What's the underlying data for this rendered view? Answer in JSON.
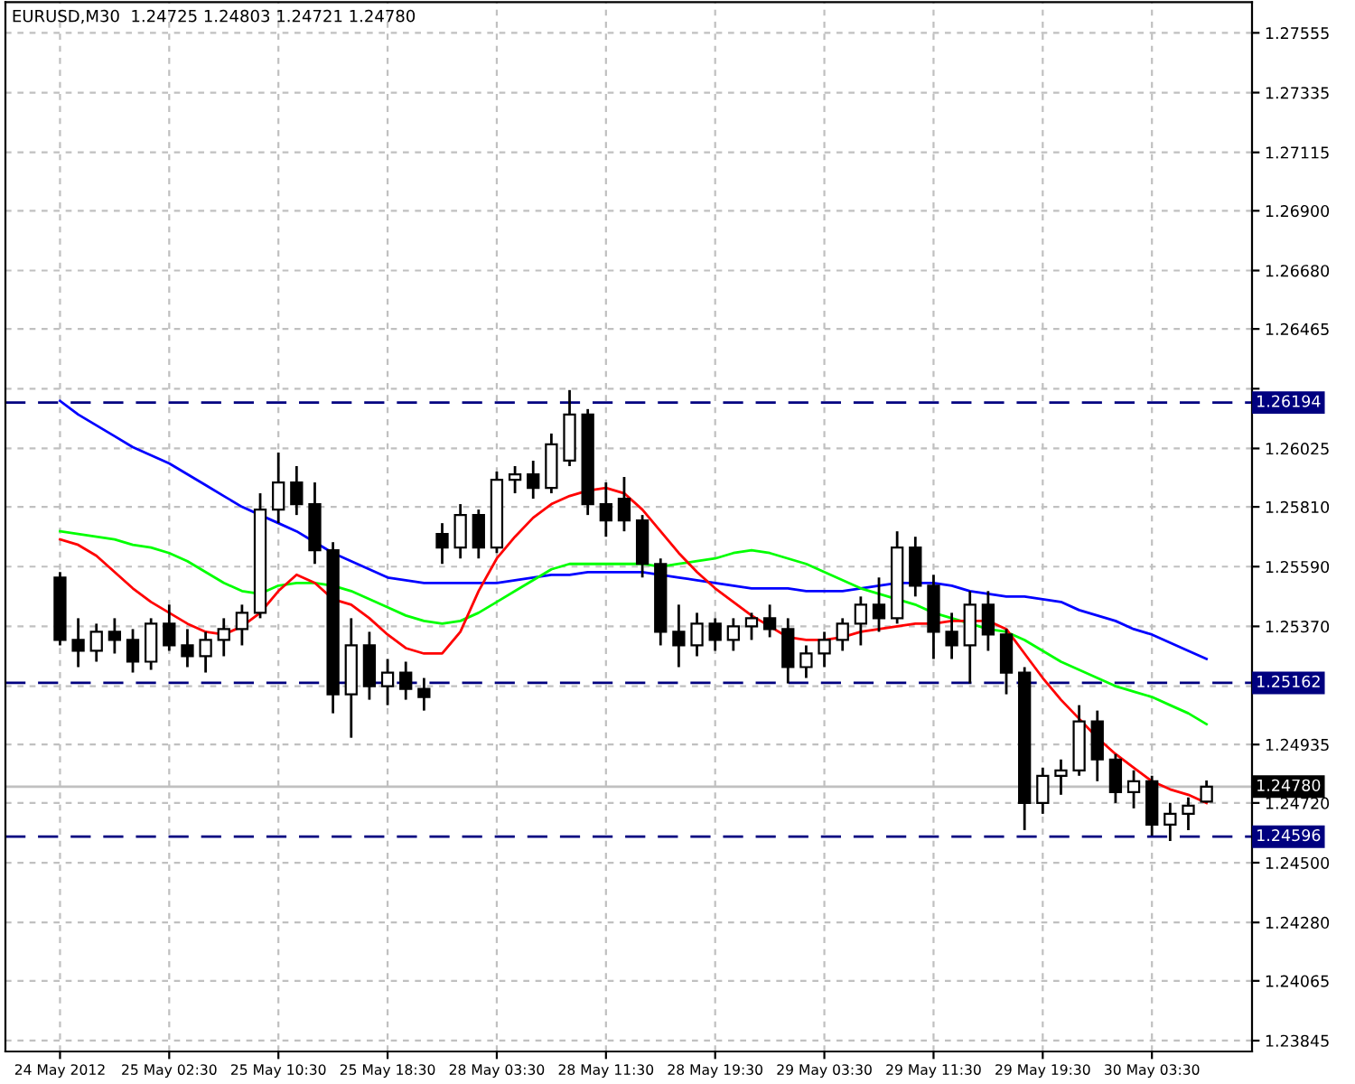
{
  "chart_data": {
    "type": "candlestick",
    "title": "EURUSD,M30  1.24725 1.24803 1.24721 1.24780",
    "categories": [
      "24 May 2012",
      null,
      null,
      null,
      null,
      null,
      "25 May 02:30",
      null,
      null,
      null,
      null,
      null,
      "25 May 10:30",
      null,
      null,
      null,
      null,
      null,
      "25 May 18:30",
      null,
      null,
      null,
      null,
      null,
      "28 May 03:30",
      null,
      null,
      null,
      null,
      null,
      "28 May 11:30",
      null,
      null,
      null,
      null,
      null,
      "28 May 19:30",
      null,
      null,
      null,
      null,
      null,
      "29 May 03:30",
      null,
      null,
      null,
      null,
      null,
      "29 May 11:30",
      null,
      null,
      null,
      null,
      null,
      "29 May 19:30",
      null,
      null,
      null,
      null,
      null,
      "30 May 03:30",
      null,
      null,
      null
    ],
    "ohlc": [
      [
        1.2555,
        1.2557,
        1.253,
        1.2532
      ],
      [
        1.2532,
        1.254,
        1.2522,
        1.2528
      ],
      [
        1.2528,
        1.2538,
        1.2524,
        1.2535
      ],
      [
        1.2535,
        1.254,
        1.2527,
        1.2532
      ],
      [
        1.2532,
        1.2536,
        1.252,
        1.2524
      ],
      [
        1.2524,
        1.254,
        1.2521,
        1.2538
      ],
      [
        1.2538,
        1.2545,
        1.2528,
        1.253
      ],
      [
        1.253,
        1.2536,
        1.2522,
        1.2526
      ],
      [
        1.2526,
        1.2535,
        1.252,
        1.2532
      ],
      [
        1.2532,
        1.254,
        1.2526,
        1.2536
      ],
      [
        1.2536,
        1.2545,
        1.253,
        1.2542
      ],
      [
        1.2542,
        1.2586,
        1.254,
        1.258
      ],
      [
        1.258,
        1.2601,
        1.2575,
        1.259
      ],
      [
        1.259,
        1.2596,
        1.2578,
        1.2582
      ],
      [
        1.2582,
        1.259,
        1.256,
        1.2565
      ],
      [
        1.2565,
        1.2568,
        1.2505,
        1.2512
      ],
      [
        1.2512,
        1.254,
        1.2496,
        1.253
      ],
      [
        1.253,
        1.2535,
        1.251,
        1.2515
      ],
      [
        1.2515,
        1.2525,
        1.2508,
        1.252
      ],
      [
        1.252,
        1.2524,
        1.251,
        1.2514
      ],
      [
        1.2514,
        1.2518,
        1.2506,
        1.2511
      ],
      [
        1.2571,
        1.2575,
        1.256,
        1.2566
      ],
      [
        1.2566,
        1.2582,
        1.2562,
        1.2578
      ],
      [
        1.2578,
        1.258,
        1.2562,
        1.2566
      ],
      [
        1.2566,
        1.2594,
        1.2564,
        1.2591
      ],
      [
        1.2591,
        1.2596,
        1.2586,
        1.2593
      ],
      [
        1.2593,
        1.2598,
        1.2584,
        1.2588
      ],
      [
        1.2588,
        1.2608,
        1.2586,
        1.2604
      ],
      [
        1.2598,
        1.2624,
        1.2596,
        1.2615
      ],
      [
        1.2615,
        1.2617,
        1.2578,
        1.2582
      ],
      [
        1.2582,
        1.259,
        1.257,
        1.2576
      ],
      [
        1.2584,
        1.2592,
        1.2572,
        1.2576
      ],
      [
        1.2576,
        1.2578,
        1.2555,
        1.256
      ],
      [
        1.256,
        1.2562,
        1.253,
        1.2535
      ],
      [
        1.2535,
        1.2545,
        1.2522,
        1.253
      ],
      [
        1.253,
        1.2542,
        1.2526,
        1.2538
      ],
      [
        1.2538,
        1.254,
        1.2528,
        1.2532
      ],
      [
        1.2532,
        1.254,
        1.2528,
        1.2537
      ],
      [
        1.2537,
        1.2542,
        1.2532,
        1.254
      ],
      [
        1.254,
        1.2545,
        1.2533,
        1.2536
      ],
      [
        1.2536,
        1.254,
        1.2516,
        1.2522
      ],
      [
        1.2522,
        1.253,
        1.2518,
        1.2527
      ],
      [
        1.2527,
        1.2535,
        1.2522,
        1.2532
      ],
      [
        1.2532,
        1.254,
        1.2528,
        1.2538
      ],
      [
        1.2538,
        1.2548,
        1.253,
        1.2545
      ],
      [
        1.2545,
        1.2555,
        1.2535,
        1.254
      ],
      [
        1.254,
        1.2572,
        1.2538,
        1.2566
      ],
      [
        1.2566,
        1.257,
        1.2548,
        1.2552
      ],
      [
        1.2552,
        1.2556,
        1.2525,
        1.2535
      ],
      [
        1.2535,
        1.2542,
        1.2525,
        1.253
      ],
      [
        1.253,
        1.255,
        1.2516,
        1.2545
      ],
      [
        1.2545,
        1.255,
        1.2528,
        1.2534
      ],
      [
        1.2534,
        1.2536,
        1.2512,
        1.252
      ],
      [
        1.252,
        1.2522,
        1.2462,
        1.2472
      ],
      [
        1.2472,
        1.2485,
        1.2468,
        1.2482
      ],
      [
        1.2482,
        1.2488,
        1.2475,
        1.2484
      ],
      [
        1.2484,
        1.2508,
        1.2482,
        1.2502
      ],
      [
        1.2502,
        1.2506,
        1.248,
        1.2488
      ],
      [
        1.2488,
        1.249,
        1.2472,
        1.2476
      ],
      [
        1.2476,
        1.2484,
        1.247,
        1.248
      ],
      [
        1.248,
        1.2482,
        1.246,
        1.2464
      ],
      [
        1.2464,
        1.2472,
        1.2458,
        1.2468
      ],
      [
        1.2468,
        1.2474,
        1.2462,
        1.2471
      ],
      [
        1.24725,
        1.24803,
        1.24721,
        1.2478
      ]
    ],
    "series": [
      {
        "type": "line",
        "color": "#0000ff",
        "values": [
          1.262,
          1.2615,
          1.2611,
          1.2607,
          1.2603,
          1.26,
          1.2597,
          1.2593,
          1.2589,
          1.2585,
          1.2581,
          1.2578,
          1.2575,
          1.2572,
          1.2568,
          1.2564,
          1.2561,
          1.2558,
          1.2555,
          1.2554,
          1.2553,
          1.2553,
          1.2553,
          1.2553,
          1.2553,
          1.2554,
          1.2555,
          1.2556,
          1.2556,
          1.2557,
          1.2557,
          1.2557,
          1.2557,
          1.2556,
          1.2555,
          1.2554,
          1.2553,
          1.2552,
          1.2551,
          1.2551,
          1.2551,
          1.255,
          1.255,
          1.255,
          1.2551,
          1.2552,
          1.2553,
          1.2553,
          1.2553,
          1.2552,
          1.255,
          1.2549,
          1.2548,
          1.2548,
          1.2547,
          1.2546,
          1.2543,
          1.2541,
          1.2539,
          1.2536,
          1.2534,
          1.2531,
          1.2528,
          1.2525
        ]
      },
      {
        "type": "line",
        "color": "#00ff00",
        "values": [
          1.2572,
          1.2571,
          1.257,
          1.2569,
          1.2567,
          1.2566,
          1.2564,
          1.2561,
          1.2557,
          1.2553,
          1.255,
          1.2549,
          1.2552,
          1.2553,
          1.2553,
          1.2552,
          1.255,
          1.2547,
          1.2544,
          1.2541,
          1.2539,
          1.2538,
          1.2539,
          1.2542,
          1.2546,
          1.255,
          1.2554,
          1.2558,
          1.256,
          1.256,
          1.256,
          1.256,
          1.256,
          1.2559,
          1.256,
          1.2561,
          1.2562,
          1.2564,
          1.2565,
          1.2564,
          1.2562,
          1.256,
          1.2557,
          1.2554,
          1.2551,
          1.2549,
          1.2547,
          1.2545,
          1.2542,
          1.254,
          1.2538,
          1.2536,
          1.2535,
          1.2532,
          1.2528,
          1.2524,
          1.2521,
          1.2518,
          1.2515,
          1.2513,
          1.2511,
          1.2508,
          1.2505,
          1.2501
        ]
      },
      {
        "type": "line",
        "color": "#ff0000",
        "values": [
          1.2569,
          1.2567,
          1.2563,
          1.2557,
          1.2551,
          1.2546,
          1.2542,
          1.2538,
          1.2535,
          1.2534,
          1.2537,
          1.2542,
          1.255,
          1.2556,
          1.2553,
          1.2547,
          1.2545,
          1.254,
          1.2534,
          1.2529,
          1.2527,
          1.2527,
          1.2535,
          1.255,
          1.2562,
          1.257,
          1.2577,
          1.2582,
          1.2585,
          1.2587,
          1.2588,
          1.2586,
          1.258,
          1.2572,
          1.2564,
          1.2557,
          1.2551,
          1.2546,
          1.2541,
          1.2537,
          1.2533,
          1.2532,
          1.2532,
          1.2533,
          1.2535,
          1.2536,
          1.2537,
          1.2538,
          1.2538,
          1.2539,
          1.2539,
          1.2539,
          1.2536,
          1.2527,
          1.2518,
          1.251,
          1.2503,
          1.2496,
          1.249,
          1.2485,
          1.248,
          1.2477,
          1.2475,
          1.2472
        ]
      }
    ],
    "ylim": [
      1.23805,
      1.27668
    ],
    "yticks": [
      1.23845,
      1.24065,
      {
        "value": 1.2428,
        "label": "1.24280"
      },
      {
        "value": 1.245,
        "label": "1.24500"
      },
      {
        "value": 1.2472,
        "label": "1.24720"
      },
      1.24935,
      {
        "value": 1.2515,
        "label": null
      },
      {
        "value": 1.2537,
        "label": "1.25370"
      },
      {
        "value": 1.2559,
        "label": "1.25590"
      },
      {
        "value": 1.2581,
        "label": "1.25810"
      },
      1.26025,
      {
        "value": 1.26245,
        "label": null
      },
      1.26465,
      {
        "value": 1.2668,
        "label": "1.26680"
      },
      {
        "value": 1.269,
        "label": "1.26900"
      },
      1.27115,
      1.27335,
      1.27555
    ],
    "ref_lines": [
      {
        "axis": "y",
        "value": 1.26194,
        "label": "1.26194",
        "color": "#000080",
        "line_style": "dashed"
      },
      {
        "axis": "y",
        "value": 1.25162,
        "label": "1.25162",
        "color": "#000080",
        "line_style": "dashed"
      },
      {
        "axis": "y",
        "value": 1.24596,
        "label": "1.24596",
        "color": "#000080",
        "line_style": "dashed"
      },
      {
        "axis": "y",
        "value": 1.2478,
        "label": "1.24780",
        "color": "#c0c0c0",
        "line_style": "solid"
      }
    ],
    "grid": true,
    "legend": false
  }
}
